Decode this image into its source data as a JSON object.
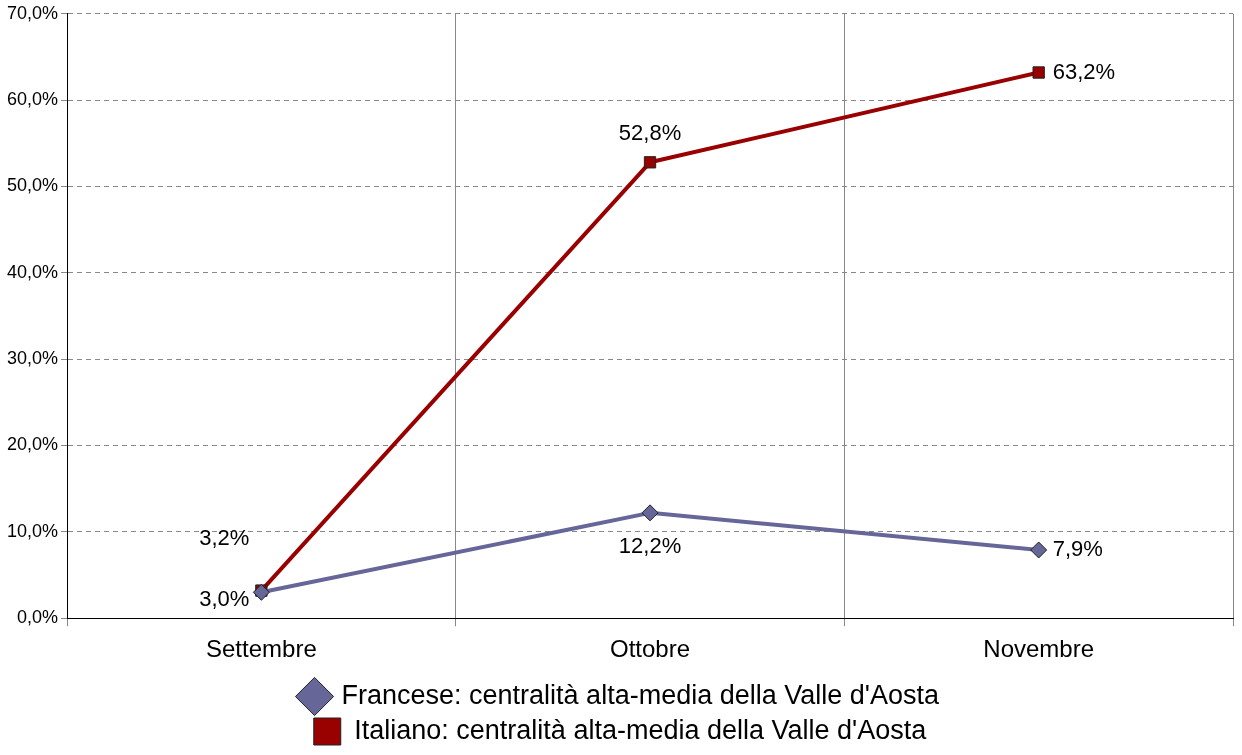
{
  "chart_data": {
    "type": "line",
    "categories": [
      "Settembre",
      "Ottobre",
      "Novembre"
    ],
    "series": [
      {
        "name": "Francese: centralità alta-media della Valle d'Aosta",
        "color": "#666699",
        "marker": "diamond",
        "values": [
          3.0,
          12.2,
          7.9
        ],
        "value_labels": [
          "3,0%",
          "12,2%",
          "7,9%"
        ]
      },
      {
        "name": "Italiano: centralità alta-media della Valle d'Aosta",
        "color": "#990000",
        "marker": "square",
        "values": [
          3.2,
          52.8,
          63.2
        ],
        "value_labels": [
          "3,2%",
          "52,8%",
          "63,2%"
        ]
      }
    ],
    "ylim": [
      0,
      70
    ],
    "yticks": [
      {
        "value": 0,
        "label": "0,0%"
      },
      {
        "value": 10,
        "label": "10,0%"
      },
      {
        "value": 20,
        "label": "20,0%"
      },
      {
        "value": 30,
        "label": "30,0%"
      },
      {
        "value": 40,
        "label": "40,0%"
      },
      {
        "value": 50,
        "label": "50,0%"
      },
      {
        "value": 60,
        "label": "60,0%"
      },
      {
        "value": 70,
        "label": "70,0%"
      }
    ],
    "grid": true,
    "legend": "bottom",
    "line_style": "solid"
  }
}
